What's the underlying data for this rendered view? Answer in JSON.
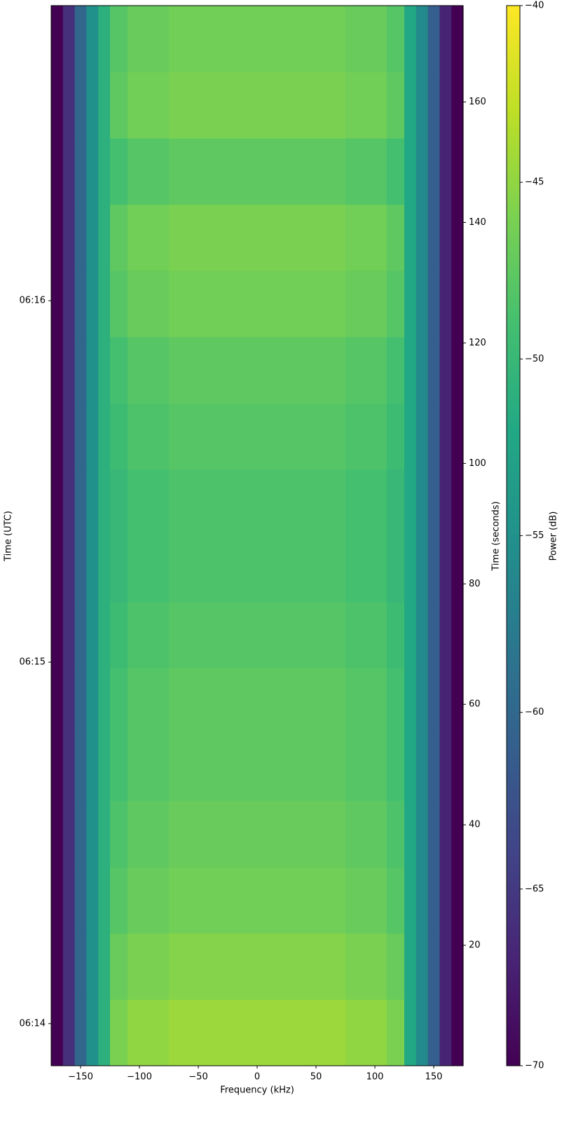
{
  "chart_data": {
    "type": "heatmap",
    "xlabel": "Frequency (kHz)",
    "ylabel": "Time (UTC)",
    "y2label": "Time (seconds)",
    "colorbar_label": "Power (dB)",
    "colormap": "viridis",
    "xlim": [
      -175,
      175
    ],
    "xticks": [
      {
        "value": -150,
        "label": "−150"
      },
      {
        "value": -100,
        "label": "−100"
      },
      {
        "value": -50,
        "label": "−50"
      },
      0,
      50,
      100,
      150
    ],
    "ylim": [
      0,
      176
    ],
    "yticks": [
      {
        "value": 7,
        "label": "06:14"
      },
      {
        "value": 67,
        "label": "06:15"
      },
      {
        "value": 127,
        "label": "06:16"
      }
    ],
    "y2lim": [
      0,
      176
    ],
    "y2ticks": [
      20,
      40,
      60,
      80,
      100,
      120,
      140,
      160
    ],
    "clim": [
      -70,
      -40
    ],
    "cticks": [
      {
        "value": -70,
        "label": "−70"
      },
      {
        "value": -65,
        "label": "−65"
      },
      {
        "value": -60,
        "label": "−60"
      },
      {
        "value": -55,
        "label": "−55"
      },
      {
        "value": -50,
        "label": "−50"
      },
      {
        "value": -45,
        "label": "−45"
      },
      {
        "value": -40,
        "label": "−40"
      }
    ],
    "xbins": [
      -175,
      -165,
      -155,
      -145,
      -135,
      -125,
      -110,
      -75,
      -25,
      25,
      75,
      110,
      125,
      135,
      145,
      155,
      165,
      175
    ],
    "ybins": [
      0,
      11,
      22,
      33,
      44,
      55,
      66,
      77,
      88,
      99,
      110,
      121,
      132,
      143,
      154,
      165,
      176
    ],
    "z": [
      [
        -70,
        -66,
        -60,
        -55,
        -51,
        -46,
        -45,
        -44.5,
        -44.5,
        -44.5,
        -45,
        -46,
        -52,
        -56,
        -61,
        -67,
        -70
      ],
      [
        -70,
        -66,
        -60,
        -55,
        -51,
        -47,
        -46,
        -45.5,
        -45.5,
        -45.5,
        -46,
        -47,
        -52,
        -56,
        -61,
        -67,
        -70
      ],
      [
        -70,
        -66,
        -60,
        -55,
        -51,
        -48,
        -47,
        -46.5,
        -46.5,
        -46.5,
        -47,
        -48,
        -52,
        -56,
        -61,
        -67,
        -70
      ],
      [
        -70,
        -66,
        -60,
        -55,
        -51,
        -48.5,
        -47.5,
        -47,
        -47,
        -47,
        -47.5,
        -48.5,
        -52,
        -56,
        -61,
        -67,
        -70
      ],
      [
        -70,
        -66,
        -60,
        -55,
        -51,
        -49,
        -48,
        -47.5,
        -47.5,
        -47.5,
        -48,
        -49,
        -52,
        -56,
        -61,
        -67,
        -70
      ],
      [
        -70,
        -66,
        -60,
        -55,
        -51,
        -49,
        -48,
        -47.5,
        -47.5,
        -47.5,
        -48,
        -49,
        -52,
        -56,
        -61,
        -67,
        -70
      ],
      [
        -70,
        -66,
        -60,
        -55,
        -51,
        -49.5,
        -48.5,
        -48,
        -48,
        -48,
        -48.5,
        -49.5,
        -52,
        -56,
        -61,
        -67,
        -70
      ],
      [
        -70,
        -66,
        -60,
        -55,
        -51,
        -50,
        -49,
        -48.5,
        -48.5,
        -48.5,
        -49,
        -50,
        -52,
        -56,
        -61,
        -67,
        -70
      ],
      [
        -70,
        -66,
        -60,
        -55,
        -51,
        -50,
        -49,
        -48.5,
        -48.5,
        -48.5,
        -49,
        -50,
        -52,
        -56,
        -61,
        -67,
        -70
      ],
      [
        -70,
        -66,
        -60,
        -55,
        -51,
        -49.5,
        -48.5,
        -48,
        -48,
        -48,
        -48.5,
        -49.5,
        -52,
        -56,
        -61,
        -67,
        -70
      ],
      [
        -70,
        -66,
        -60,
        -55,
        -51,
        -49,
        -48,
        -47.5,
        -47.5,
        -47.5,
        -48,
        -49,
        -52,
        -56,
        -61,
        -67,
        -70
      ],
      [
        -70,
        -66,
        -60,
        -55,
        -51,
        -48,
        -47,
        -46.5,
        -46.5,
        -46.5,
        -47,
        -48,
        -52,
        -56,
        -61,
        -67,
        -70
      ],
      [
        -70,
        -66,
        -60,
        -55,
        -51,
        -47.5,
        -46.5,
        -46,
        -46,
        -46,
        -46.5,
        -47.5,
        -52,
        -56,
        -61,
        -67,
        -70
      ],
      [
        -70,
        -66,
        -60,
        -55,
        -51,
        -49,
        -48,
        -47.5,
        -47.5,
        -47.5,
        -48,
        -49,
        -52,
        -56,
        -61,
        -67,
        -70
      ],
      [
        -70,
        -66,
        -60,
        -55,
        -51,
        -47.5,
        -46.5,
        -46,
        -46,
        -46,
        -46.5,
        -47.5,
        -52,
        -56,
        -61,
        -67,
        -70
      ],
      [
        -70,
        -66,
        -60,
        -55,
        -51,
        -48,
        -47,
        -46.5,
        -46.5,
        -46.5,
        -47,
        -48,
        -52,
        -56,
        -61,
        -67,
        -70
      ]
    ]
  }
}
